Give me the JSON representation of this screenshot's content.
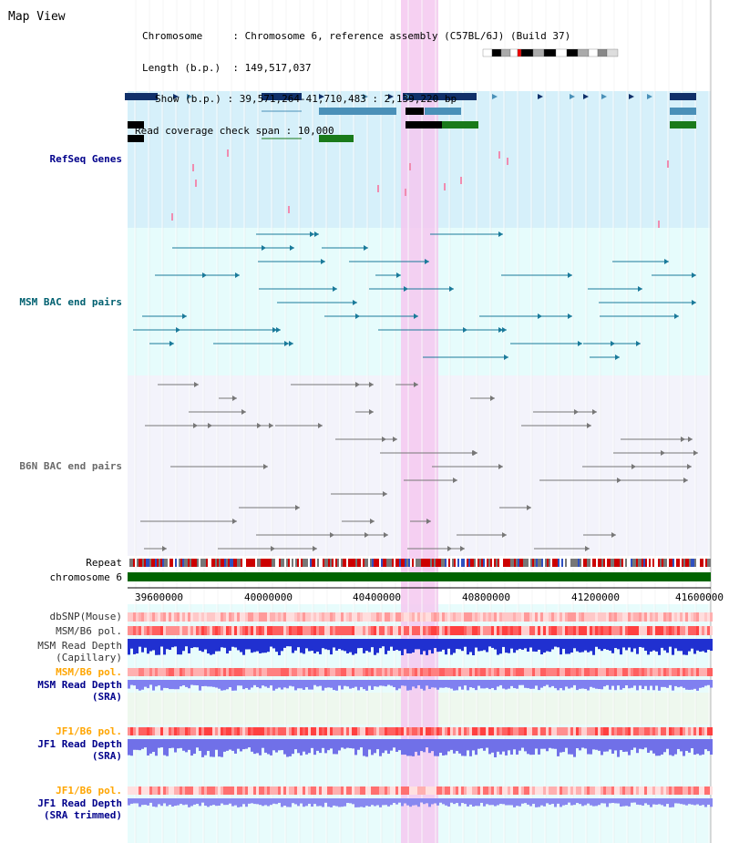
{
  "app": {
    "title": "Map View"
  },
  "info": {
    "chromosome_label": "Chromosome",
    "chromosome_value": "Chromosome 6, reference assembly (C57BL/6J) (Build 37)",
    "length_label": "Length (b.p.)",
    "length_value": "149,517,037",
    "show_label": "Show (b.p.)",
    "show_value": "39,571,264-41,710,483 : 2,139,220 bp",
    "span_label": "Read coverage check span",
    "span_value": "10,000"
  },
  "tracks": {
    "refseq": "RefSeq Genes",
    "msm_bac": "MSM BAC end pairs",
    "b6n_bac": "B6N BAC end pairs",
    "repeat": "Repeat",
    "chromosome": "chromosome 6",
    "dbsnp": "dbSNP(Mouse)",
    "msm_b6_pol_1": "MSM/B6 pol.",
    "msm_depth_cap_1": "MSM Read Depth",
    "msm_depth_cap_2": "(Capillary)",
    "msm_b6_pol_2": "MSM/B6 pol.",
    "msm_depth_sra_1": "MSM Read Depth",
    "msm_depth_sra_2": "(SRA)",
    "jf1_b6_pol_1": "JF1/B6 pol.",
    "jf1_depth_sra_1": "JF1 Read Depth",
    "jf1_depth_sra_2": "(SRA)",
    "jf1_b6_pol_2": "JF1/B6 pol.",
    "jf1_depth_trim_1": "JF1 Read Depth",
    "jf1_depth_trim_2": "(SRA trimmed)"
  },
  "axis": {
    "ticks": [
      "39600000",
      "40000000",
      "40400000",
      "40800000",
      "41200000",
      "41600000"
    ]
  },
  "colors": {
    "refseq_bg": "#d6f0fa",
    "msm_bg": "#e6fcfc",
    "b6n_bg": "#f3f3fb",
    "highlight": "#f5c8f0",
    "chromosome": "#006400",
    "label_refseq": "#00008b",
    "label_msm": "#006070",
    "label_orange": "#ffa500",
    "label_blue": "#00008b"
  }
}
